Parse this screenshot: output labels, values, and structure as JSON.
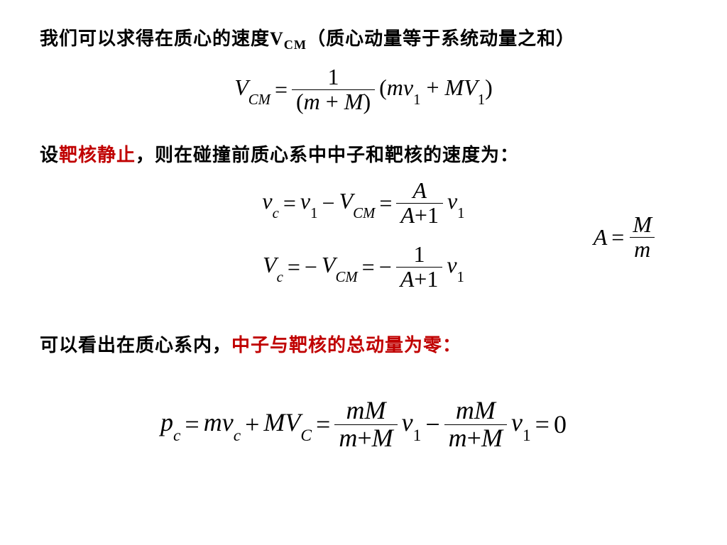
{
  "colors": {
    "text": "#000000",
    "highlight": "#c00000",
    "background": "#ffffff"
  },
  "typography": {
    "body_font": "SimSun",
    "body_size_pt": 20,
    "body_weight": "bold",
    "math_font": "Times New Roman (italic)",
    "math_size_pt": 24
  },
  "line1": {
    "pre": "我们可以求得在质心的速度V",
    "sub": "CM",
    "post": "（质心动量等于系统动量之和）"
  },
  "eq1": {
    "lhs_var": "V",
    "lhs_sub": "CM",
    "eq": "=",
    "frac_num": "1",
    "frac_den_open": "(",
    "frac_den_m": "m",
    "frac_den_plus": "+",
    "frac_den_M": "M",
    "frac_den_close": ")",
    "tail_open": "(",
    "tail_m": "m",
    "tail_v": "v",
    "tail_v_sub": "1",
    "tail_plus": "+",
    "tail_M": "M",
    "tail_V": "V",
    "tail_V_sub": "1",
    "tail_close": ")"
  },
  "line2": {
    "a": "设",
    "b_red": "靶核静止",
    "c": "，则在碰撞前质心系中中子和靶核的速度为："
  },
  "eq2": {
    "lhs_var": "v",
    "lhs_sub": "c",
    "eq1": "=",
    "t1_var": "v",
    "t1_sub": "1",
    "minus": "−",
    "t2_var": "V",
    "t2_sub": "CM",
    "eq2": "=",
    "frac_num": "A",
    "frac_den_A": "A",
    "frac_den_plus": "+",
    "frac_den_1": "1",
    "tail_var": "v",
    "tail_sub": "1"
  },
  "eq3": {
    "lhs_var": "V",
    "lhs_sub": "c",
    "eq1": "=",
    "neg1": "−",
    "t1_var": "V",
    "t1_sub": "CM",
    "eq2": "=",
    "neg2": "−",
    "frac_num": "1",
    "frac_den_A": "A",
    "frac_den_plus": "+",
    "frac_den_1": "1",
    "tail_var": "v",
    "tail_sub": "1"
  },
  "eqA": {
    "lhs": "A",
    "eq": "=",
    "num": "M",
    "den": "m"
  },
  "line3": {
    "a": "可以看出在质心系内，",
    "b_red": "中子与靶核的总动量为零："
  },
  "eq4": {
    "lhs_var": "p",
    "lhs_sub": "c",
    "eq1": "=",
    "t1_m": "m",
    "t1_v": "v",
    "t1_v_sub": "c",
    "plus1": "+",
    "t2_M": "M",
    "t2_V": "V",
    "t2_V_sub": "C",
    "eq2": "=",
    "f1_num_m": "m",
    "f1_num_M": "M",
    "f1_den_m": "m",
    "f1_den_plus": "+",
    "f1_den_M": "M",
    "t3_v": "v",
    "t3_sub": "1",
    "minus": "−",
    "f2_num_m": "m",
    "f2_num_M": "M",
    "f2_den_m": "m",
    "f2_den_plus": "+",
    "f2_den_M": "M",
    "t4_v": "v",
    "t4_sub": "1",
    "eq3": "=",
    "zero": "0"
  }
}
